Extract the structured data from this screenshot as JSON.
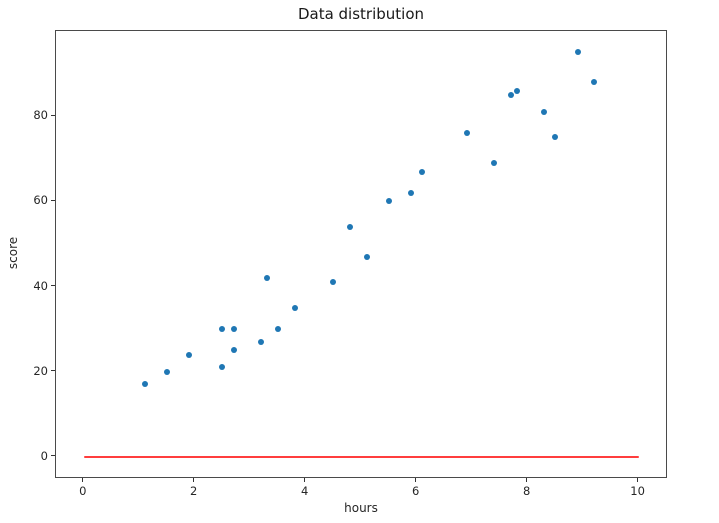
{
  "chart_data": {
    "type": "scatter",
    "title": "Data distribution",
    "xlabel": "hours",
    "ylabel": "score",
    "xlim": [
      -0.5,
      10.53
    ],
    "ylim": [
      -5.2,
      100
    ],
    "x_ticks": [
      0,
      2,
      4,
      6,
      8,
      10
    ],
    "y_ticks": [
      0,
      20,
      40,
      60,
      80
    ],
    "grid": false,
    "legend": null,
    "point_color": "#1f77b4",
    "line_color": "#ff3d3d",
    "series": [
      {
        "name": "hours-vs-score-points",
        "kind": "scatter",
        "color": "#1f77b4",
        "points": [
          [
            1.1,
            17
          ],
          [
            1.5,
            20
          ],
          [
            1.9,
            24
          ],
          [
            2.5,
            21
          ],
          [
            2.5,
            30
          ],
          [
            2.7,
            25
          ],
          [
            2.7,
            30
          ],
          [
            3.2,
            27
          ],
          [
            3.3,
            42
          ],
          [
            3.5,
            30
          ],
          [
            3.8,
            35
          ],
          [
            4.5,
            41
          ],
          [
            4.8,
            54
          ],
          [
            5.1,
            47
          ],
          [
            5.5,
            60
          ],
          [
            5.9,
            62
          ],
          [
            6.1,
            67
          ],
          [
            6.9,
            76
          ],
          [
            7.4,
            69
          ],
          [
            7.7,
            85
          ],
          [
            7.8,
            86
          ],
          [
            8.3,
            81
          ],
          [
            8.5,
            75
          ],
          [
            8.9,
            95
          ],
          [
            9.2,
            88
          ]
        ]
      },
      {
        "name": "zero-baseline",
        "kind": "line",
        "color": "#ff3d3d",
        "points": [
          [
            0,
            0
          ],
          [
            10,
            0
          ]
        ]
      }
    ]
  }
}
